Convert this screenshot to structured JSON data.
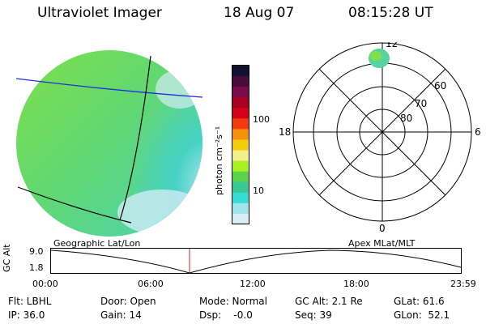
{
  "header": {
    "instrument": "Ultraviolet Imager",
    "date": "18 Aug 07",
    "time": "08:15:28 UT"
  },
  "colorbar": {
    "unit": "photon cm⁻²s⁻¹",
    "ticks": [
      "100",
      "10"
    ],
    "colors": [
      "#111133",
      "#4a0a3a",
      "#7a0a4a",
      "#aa0020",
      "#d40018",
      "#f23c0c",
      "#f7900a",
      "#f4cc0c",
      "#f2f088",
      "#a8f020",
      "#5ad24a",
      "#3ac896",
      "#36dcd6",
      "#9ee6ee",
      "#d8eef4"
    ]
  },
  "polar": {
    "mlt_labels": {
      "top": "12",
      "left": "18",
      "right": "6",
      "bottom": "0"
    },
    "lat_labels": [
      "60",
      "70",
      "80"
    ]
  },
  "timeline": {
    "left_label": "Geographic Lat/Lon",
    "right_label": "Apex MLat/MLT",
    "axis_title": "GC Alt",
    "y_ticks": [
      "9.0",
      "1.8"
    ],
    "x_ticks": [
      "00:00",
      "06:00",
      "12:00",
      "18:00",
      "23:59"
    ],
    "marker_color": "#cc2222"
  },
  "info": {
    "flt": "Flt: LBHL",
    "ip": "IP: 36.0",
    "door": "Door: Open",
    "gain": "Gain: 14",
    "mode": "Mode: Normal",
    "dsp": "Dsp:    -0.0",
    "gcalt": "GC Alt: 2.1 Re",
    "seq": "Seq: 39",
    "glat": "GLat: 61.6",
    "glon": "GLon:  52.1"
  }
}
